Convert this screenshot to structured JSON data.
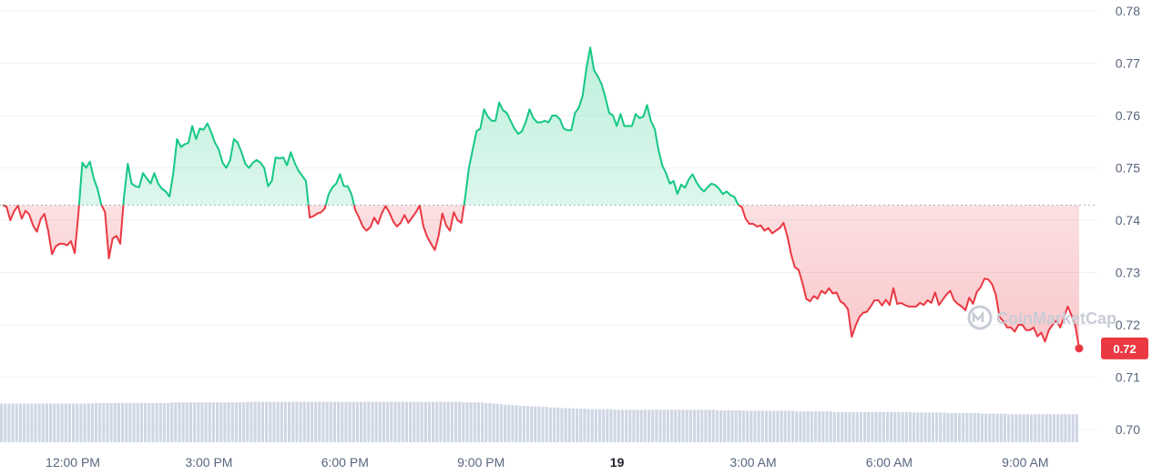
{
  "chart_data": {
    "type": "line",
    "y_ticks": [
      "0.70",
      "0.71",
      "0.72",
      "0.73",
      "0.74",
      "0.75",
      "0.76",
      "0.77",
      "0.78"
    ],
    "ylim": [
      0.7,
      0.78
    ],
    "x_ticks": [
      "12:00 PM",
      "3:00 PM",
      "6:00 PM",
      "9:00 PM",
      "19",
      "3:00 AM",
      "6:00 AM",
      "9:00 AM"
    ],
    "x_tick_bold": [
      false,
      false,
      false,
      false,
      true,
      false,
      false,
      false
    ],
    "reference_price": 0.7429,
    "current_price": 0.7155,
    "current_price_label": "0.72",
    "watermark": "CoinMarketCap",
    "colors": {
      "up": "#16c784",
      "down": "#ea3943",
      "grid": "#eff2f5",
      "volume": "#cfd6e4",
      "text": "#58667e"
    },
    "price_series": [
      0.7429,
      0.7426,
      0.74,
      0.7417,
      0.7428,
      0.7403,
      0.7418,
      0.7411,
      0.739,
      0.7378,
      0.7402,
      0.7412,
      0.738,
      0.7335,
      0.735,
      0.7355,
      0.7355,
      0.7352,
      0.736,
      0.7337,
      0.7415,
      0.751,
      0.75,
      0.7512,
      0.748,
      0.746,
      0.743,
      0.7415,
      0.7327,
      0.7365,
      0.737,
      0.7355,
      0.7445,
      0.7508,
      0.747,
      0.7465,
      0.7463,
      0.749,
      0.748,
      0.747,
      0.749,
      0.747,
      0.746,
      0.7455,
      0.7445,
      0.749,
      0.7555,
      0.754,
      0.7545,
      0.7548,
      0.758,
      0.7555,
      0.7575,
      0.7573,
      0.7585,
      0.7568,
      0.7548,
      0.7535,
      0.751,
      0.75,
      0.7515,
      0.7555,
      0.7548,
      0.753,
      0.7508,
      0.75,
      0.751,
      0.7515,
      0.751,
      0.75,
      0.7465,
      0.7475,
      0.752,
      0.7518,
      0.752,
      0.7505,
      0.753,
      0.751,
      0.7495,
      0.7485,
      0.7475,
      0.7405,
      0.7408,
      0.7413,
      0.7415,
      0.7423,
      0.745,
      0.7463,
      0.747,
      0.7488,
      0.7465,
      0.7465,
      0.745,
      0.742,
      0.7405,
      0.7388,
      0.738,
      0.7387,
      0.7405,
      0.7393,
      0.7413,
      0.7427,
      0.7415,
      0.7398,
      0.7388,
      0.7395,
      0.741,
      0.7395,
      0.7405,
      0.7415,
      0.7428,
      0.7388,
      0.7368,
      0.7355,
      0.7343,
      0.737,
      0.7413,
      0.739,
      0.738,
      0.7415,
      0.74,
      0.7395,
      0.7443,
      0.75,
      0.7535,
      0.757,
      0.7575,
      0.7612,
      0.7598,
      0.759,
      0.759,
      0.7625,
      0.761,
      0.7605,
      0.759,
      0.7575,
      0.7565,
      0.757,
      0.7588,
      0.7612,
      0.7595,
      0.7587,
      0.7587,
      0.759,
      0.7587,
      0.76,
      0.76,
      0.7593,
      0.7575,
      0.7572,
      0.7572,
      0.7605,
      0.7615,
      0.7638,
      0.769,
      0.773,
      0.7687,
      0.7675,
      0.766,
      0.7635,
      0.7605,
      0.76,
      0.758,
      0.7603,
      0.758,
      0.758,
      0.758,
      0.7603,
      0.7595,
      0.7598,
      0.762,
      0.759,
      0.7575,
      0.7535,
      0.7505,
      0.749,
      0.747,
      0.7475,
      0.745,
      0.7468,
      0.7462,
      0.7478,
      0.7488,
      0.7473,
      0.7462,
      0.7455,
      0.7463,
      0.747,
      0.7467,
      0.746,
      0.745,
      0.7455,
      0.7448,
      0.7445,
      0.743,
      0.7425,
      0.7403,
      0.7393,
      0.7393,
      0.7388,
      0.739,
      0.738,
      0.7385,
      0.7375,
      0.738,
      0.7385,
      0.7395,
      0.737,
      0.7335,
      0.731,
      0.7305,
      0.728,
      0.725,
      0.7245,
      0.7255,
      0.725,
      0.7265,
      0.726,
      0.727,
      0.726,
      0.7262,
      0.7245,
      0.724,
      0.723,
      0.7177,
      0.7198,
      0.7215,
      0.7223,
      0.7225,
      0.7235,
      0.7247,
      0.7247,
      0.7237,
      0.7248,
      0.7238,
      0.727,
      0.724,
      0.7242,
      0.7238,
      0.7235,
      0.7235,
      0.7235,
      0.7242,
      0.7238,
      0.7247,
      0.7242,
      0.7262,
      0.7238,
      0.7248,
      0.7258,
      0.7265,
      0.7247,
      0.724,
      0.7235,
      0.7228,
      0.7252,
      0.724,
      0.7263,
      0.7272,
      0.7288,
      0.7287,
      0.7278,
      0.7258,
      0.7215,
      0.7207,
      0.7195,
      0.7195,
      0.7187,
      0.72,
      0.72,
      0.719,
      0.719,
      0.7195,
      0.7178,
      0.7185,
      0.7168,
      0.719,
      0.72,
      0.7208,
      0.7195,
      0.7215,
      0.7235,
      0.7218,
      0.7198,
      0.7155
    ],
    "volume_series": [
      6.9,
      6.9,
      6.9,
      6.9,
      6.9,
      6.9,
      6.9,
      6.9,
      6.9,
      6.9,
      6.9,
      6.9,
      6.9,
      6.9,
      6.9,
      6.9,
      6.9,
      6.9,
      6.9,
      6.9,
      6.9,
      6.9,
      6.9,
      6.9,
      6.9,
      7.0,
      7.0,
      7.0,
      7.0,
      7.0,
      7.0,
      7.0,
      7.0,
      7.0,
      7.0,
      7.0,
      7.0,
      7.0,
      7.0,
      7.0,
      7.0,
      7.0,
      7.0,
      7.0,
      7.0,
      7.1,
      7.1,
      7.1,
      7.1,
      7.1,
      7.1,
      7.1,
      7.1,
      7.1,
      7.1,
      7.1,
      7.1,
      7.1,
      7.1,
      7.1,
      7.1,
      7.1,
      7.1,
      7.1,
      7.1,
      7.2,
      7.2,
      7.2,
      7.2,
      7.2,
      7.2,
      7.2,
      7.2,
      7.2,
      7.2,
      7.2,
      7.2,
      7.2,
      7.2,
      7.2,
      7.2,
      7.2,
      7.2,
      7.2,
      7.2,
      7.2,
      7.2,
      7.2,
      7.2,
      7.2,
      7.2,
      7.2,
      7.2,
      7.2,
      7.2,
      7.2,
      7.2,
      7.2,
      7.2,
      7.2,
      7.2,
      7.2,
      7.2,
      7.2,
      7.2,
      7.2,
      7.2,
      7.2,
      7.2,
      7.2,
      7.2,
      7.2,
      7.2,
      7.2,
      7.2,
      7.2,
      7.2,
      7.2,
      7.2,
      7.2,
      7.2,
      7.2,
      7.1,
      7.1,
      7.1,
      7.1,
      7.1,
      7.1,
      7.0,
      7.0,
      6.9,
      6.9,
      6.8,
      6.7,
      6.7,
      6.6,
      6.6,
      6.5,
      6.5,
      6.5,
      6.4,
      6.4,
      6.4,
      6.3,
      6.3,
      6.2,
      6.2,
      6.2,
      6.1,
      6.1,
      6.1,
      6.0,
      6.0,
      6.0,
      6.0,
      5.9,
      5.9,
      5.9,
      5.9,
      5.9,
      5.9,
      5.9,
      5.8,
      5.8,
      5.8,
      5.8,
      5.8,
      5.8,
      5.8,
      5.8,
      5.8,
      5.8,
      5.8,
      5.8,
      5.8,
      5.8,
      5.8,
      5.8,
      5.8,
      5.8,
      5.8,
      5.8,
      5.8,
      5.8,
      5.8,
      5.8,
      5.8,
      5.8,
      5.8,
      5.7,
      5.7,
      5.7,
      5.7,
      5.7,
      5.7,
      5.7,
      5.6,
      5.6,
      5.6,
      5.6,
      5.6,
      5.6,
      5.6,
      5.6,
      5.6,
      5.6,
      5.6,
      5.6,
      5.6,
      5.6,
      5.5,
      5.5,
      5.5,
      5.5,
      5.5,
      5.5,
      5.5,
      5.5,
      5.5,
      5.5,
      5.4,
      5.4,
      5.4,
      5.4,
      5.4,
      5.4,
      5.4,
      5.4,
      5.4,
      5.4,
      5.4,
      5.4,
      5.4,
      5.4,
      5.4,
      5.4,
      5.4,
      5.4,
      5.4,
      5.4,
      5.4,
      5.3,
      5.3,
      5.3,
      5.3,
      5.3,
      5.3,
      5.3,
      5.3,
      5.3,
      5.2,
      5.2,
      5.2,
      5.2,
      5.2,
      5.2,
      5.2,
      5.2,
      5.2,
      5.1,
      5.1,
      5.1,
      5.1,
      5.1,
      5.1,
      5.1,
      5.0,
      5.0,
      5.0,
      5.0,
      5.0,
      5.0,
      5.0,
      5.0,
      5.0,
      5.0,
      5.0,
      5.0,
      5.0,
      5.0,
      5.0,
      5.0,
      5.0,
      5.0,
      5.0
    ]
  }
}
